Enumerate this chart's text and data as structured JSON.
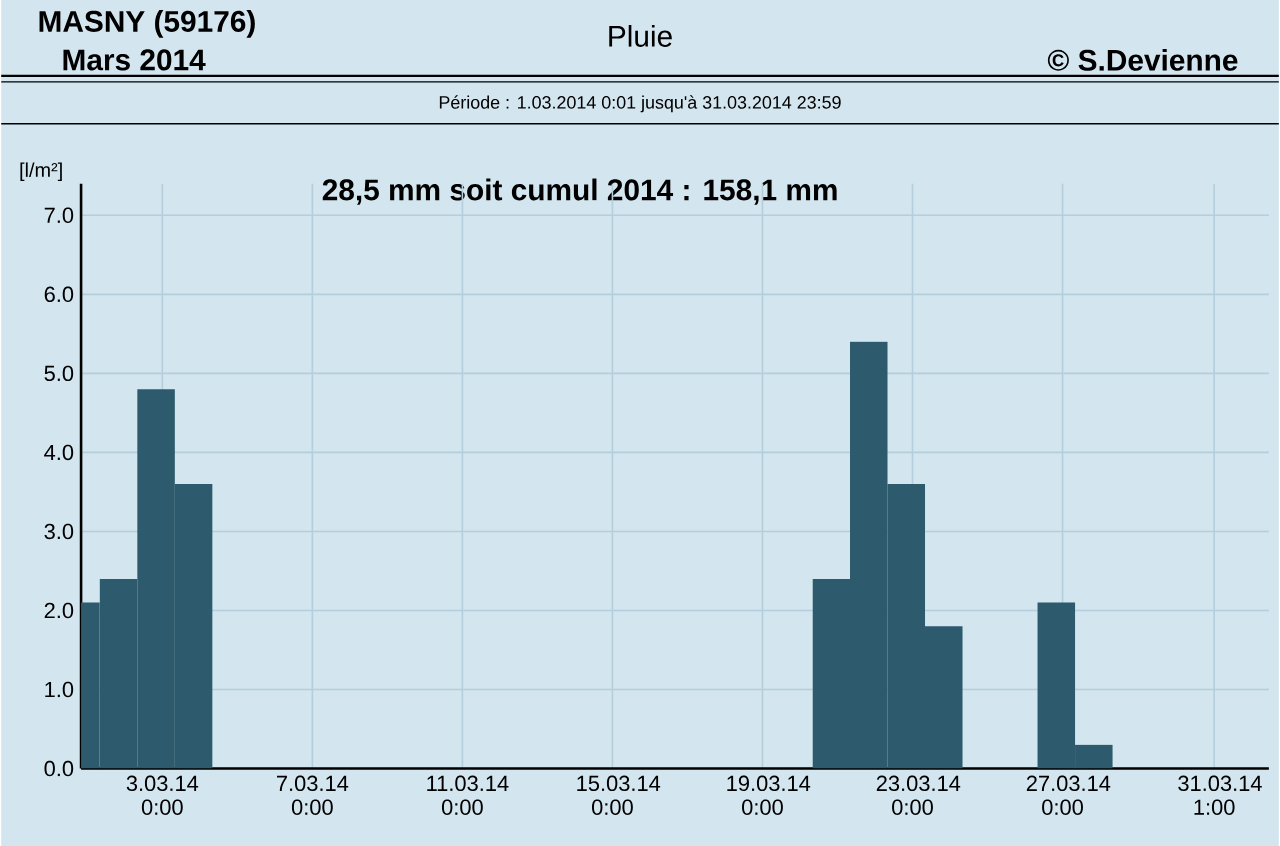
{
  "chart_data": {
    "type": "bar",
    "title": "Pluie",
    "subtitle": "Période : 1.03.2014 0:01 jusqu'à 31.03.2014 23:59",
    "ylabel": "[l/m²]",
    "annotations": [
      "MASNY (59176)",
      "Mars 2014",
      "© S.Devienne",
      "28,5 mm soit cumul 2014 : 158,1 mm"
    ],
    "x": [
      "2014-02-28T20:00",
      "2014-03-01T20:00",
      "2014-03-02T20:00",
      "2014-03-03T20:00",
      "2014-03-20T20:00",
      "2014-03-21T20:00",
      "2014-03-22T20:00",
      "2014-03-23T20:00",
      "2014-03-26T20:00",
      "2014-03-27T20:00"
    ],
    "values": [
      2.1,
      2.4,
      4.8,
      3.6,
      2.4,
      5.4,
      3.6,
      1.8,
      2.1,
      0.3
    ],
    "color": "#2d5a6c",
    "xlim": [
      "2014-02-28T20:00",
      "2014-04-01T12:00"
    ],
    "ylim": [
      0,
      7.4
    ],
    "xticks": [
      {
        "value": "2014-03-03T00:00",
        "label": "3.03.14 0:00"
      },
      {
        "value": "2014-03-07T00:00",
        "label": "7.03.14 0:00"
      },
      {
        "value": "2014-03-11T00:00",
        "label": "11.03.14 0:00"
      },
      {
        "value": "2014-03-15T00:00",
        "label": "15.03.14 0:00"
      },
      {
        "value": "2014-03-19T00:00",
        "label": "19.03.14 0:00"
      },
      {
        "value": "2014-03-23T00:00",
        "label": "23.03.14 0:00"
      },
      {
        "value": "2014-03-27T00:00",
        "label": "27.03.14 0:00"
      },
      {
        "value": "2014-03-31T01:00",
        "label": "31.03.14 1:00"
      }
    ],
    "yticks": [
      {
        "value": 0,
        "label": "0.0"
      },
      {
        "value": 1,
        "label": "1.0"
      },
      {
        "value": 2,
        "label": "2.0"
      },
      {
        "value": 3,
        "label": "3.0"
      },
      {
        "value": 4,
        "label": "4.0"
      },
      {
        "value": 5,
        "label": "5.0"
      },
      {
        "value": 6,
        "label": "6.0"
      },
      {
        "value": 7,
        "label": "7.0"
      }
    ],
    "grid": true
  }
}
